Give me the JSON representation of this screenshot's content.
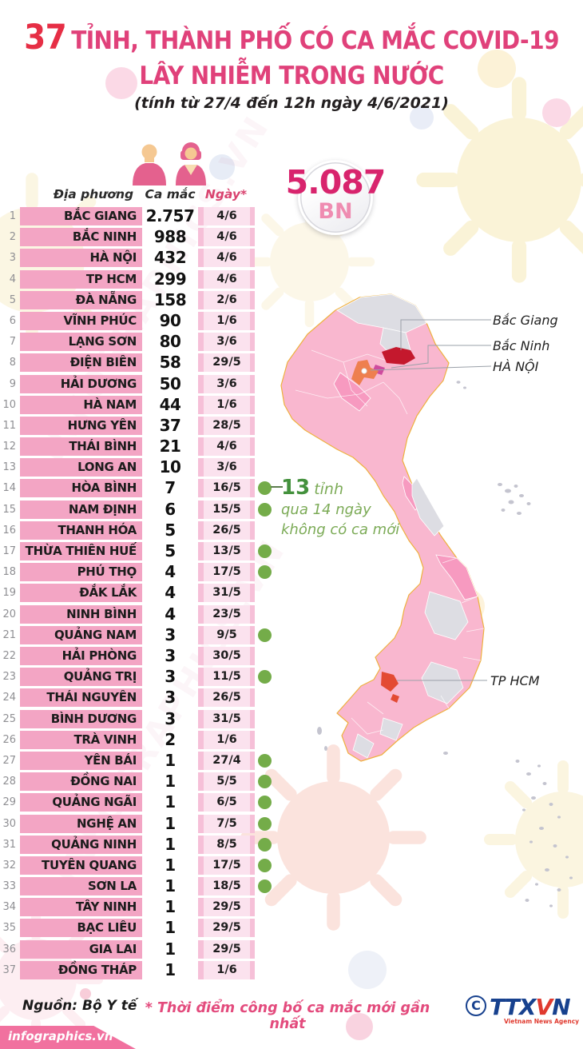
{
  "title": {
    "number": "37",
    "rest": "TỈNH, THÀNH PHỐ CÓ CA MẮC COVID-19",
    "line2": "LÂY NHIỄM TRONG NƯỚC",
    "subtitle": "(tính từ 27/4 đến 12h ngày 4/6/2021)"
  },
  "badge": {
    "value": "5.087",
    "unit": "BN"
  },
  "table": {
    "headers": {
      "province": "Địa phương",
      "cases": "Ca mắc",
      "date": "Ngày*"
    },
    "rows": [
      {
        "rank": 1,
        "province": "BẮC GIANG",
        "cases": "2.757",
        "date": "4/6",
        "no_new_cases_14d": false
      },
      {
        "rank": 2,
        "province": "BẮC NINH",
        "cases": "988",
        "date": "4/6",
        "no_new_cases_14d": false
      },
      {
        "rank": 3,
        "province": "HÀ NỘI",
        "cases": "432",
        "date": "4/6",
        "no_new_cases_14d": false
      },
      {
        "rank": 4,
        "province": "TP HCM",
        "cases": "299",
        "date": "4/6",
        "no_new_cases_14d": false
      },
      {
        "rank": 5,
        "province": "ĐÀ NẴNG",
        "cases": "158",
        "date": "2/6",
        "no_new_cases_14d": false
      },
      {
        "rank": 6,
        "province": "VĨNH PHÚC",
        "cases": "90",
        "date": "1/6",
        "no_new_cases_14d": false
      },
      {
        "rank": 7,
        "province": "LẠNG SƠN",
        "cases": "80",
        "date": "3/6",
        "no_new_cases_14d": false
      },
      {
        "rank": 8,
        "province": "ĐIỆN BIÊN",
        "cases": "58",
        "date": "29/5",
        "no_new_cases_14d": false
      },
      {
        "rank": 9,
        "province": "HẢI DƯƠNG",
        "cases": "50",
        "date": "3/6",
        "no_new_cases_14d": false
      },
      {
        "rank": 10,
        "province": "HÀ NAM",
        "cases": "44",
        "date": "1/6",
        "no_new_cases_14d": false
      },
      {
        "rank": 11,
        "province": "HƯNG YÊN",
        "cases": "37",
        "date": "28/5",
        "no_new_cases_14d": false
      },
      {
        "rank": 12,
        "province": "THÁI BÌNH",
        "cases": "21",
        "date": "4/6",
        "no_new_cases_14d": false
      },
      {
        "rank": 13,
        "province": "LONG AN",
        "cases": "10",
        "date": "3/6",
        "no_new_cases_14d": false
      },
      {
        "rank": 14,
        "province": "HÒA BÌNH",
        "cases": "7",
        "date": "16/5",
        "no_new_cases_14d": true
      },
      {
        "rank": 15,
        "province": "NAM ĐỊNH",
        "cases": "6",
        "date": "15/5",
        "no_new_cases_14d": true
      },
      {
        "rank": 16,
        "province": "THANH HÓA",
        "cases": "5",
        "date": "26/5",
        "no_new_cases_14d": false
      },
      {
        "rank": 17,
        "province": "THỪA THIÊN HUẾ",
        "cases": "5",
        "date": "13/5",
        "no_new_cases_14d": true
      },
      {
        "rank": 18,
        "province": "PHÚ THỌ",
        "cases": "4",
        "date": "17/5",
        "no_new_cases_14d": true
      },
      {
        "rank": 19,
        "province": "ĐẮK LẮK",
        "cases": "4",
        "date": "31/5",
        "no_new_cases_14d": false
      },
      {
        "rank": 20,
        "province": "NINH BÌNH",
        "cases": "4",
        "date": "23/5",
        "no_new_cases_14d": false
      },
      {
        "rank": 21,
        "province": "QUẢNG NAM",
        "cases": "3",
        "date": "9/5",
        "no_new_cases_14d": true
      },
      {
        "rank": 22,
        "province": "HẢI PHÒNG",
        "cases": "3",
        "date": "30/5",
        "no_new_cases_14d": false
      },
      {
        "rank": 23,
        "province": "QUẢNG TRỊ",
        "cases": "3",
        "date": "11/5",
        "no_new_cases_14d": true
      },
      {
        "rank": 24,
        "province": "THÁI NGUYÊN",
        "cases": "3",
        "date": "26/5",
        "no_new_cases_14d": false
      },
      {
        "rank": 25,
        "province": "BÌNH DƯƠNG",
        "cases": "3",
        "date": "31/5",
        "no_new_cases_14d": false
      },
      {
        "rank": 26,
        "province": "TRÀ VINH",
        "cases": "2",
        "date": "1/6",
        "no_new_cases_14d": false
      },
      {
        "rank": 27,
        "province": "YÊN BÁI",
        "cases": "1",
        "date": "27/4",
        "no_new_cases_14d": true
      },
      {
        "rank": 28,
        "province": "ĐỒNG NAI",
        "cases": "1",
        "date": "5/5",
        "no_new_cases_14d": true
      },
      {
        "rank": 29,
        "province": "QUẢNG NGÃI",
        "cases": "1",
        "date": "6/5",
        "no_new_cases_14d": true
      },
      {
        "rank": 30,
        "province": "NGHỆ AN",
        "cases": "1",
        "date": "7/5",
        "no_new_cases_14d": true
      },
      {
        "rank": 31,
        "province": "QUẢNG NINH",
        "cases": "1",
        "date": "8/5",
        "no_new_cases_14d": true
      },
      {
        "rank": 32,
        "province": "TUYÊN QUANG",
        "cases": "1",
        "date": "17/5",
        "no_new_cases_14d": true
      },
      {
        "rank": 33,
        "province": "SƠN LA",
        "cases": "1",
        "date": "18/5",
        "no_new_cases_14d": true
      },
      {
        "rank": 34,
        "province": "TÂY NINH",
        "cases": "1",
        "date": "29/5",
        "no_new_cases_14d": false
      },
      {
        "rank": 35,
        "province": "BẠC LIÊU",
        "cases": "1",
        "date": "29/5",
        "no_new_cases_14d": false
      },
      {
        "rank": 36,
        "province": "GIA LAI",
        "cases": "1",
        "date": "29/5",
        "no_new_cases_14d": false
      },
      {
        "rank": 37,
        "province": "ĐỒNG THÁP",
        "cases": "1",
        "date": "1/6",
        "no_new_cases_14d": false
      }
    ]
  },
  "annotation": {
    "number": "13",
    "word": "tỉnh",
    "line2": "qua 14 ngày",
    "line3": "không có ca mới"
  },
  "map": {
    "labels": [
      {
        "name": "Bắc Giang"
      },
      {
        "name": "Bắc Ninh"
      },
      {
        "name": "HÀ NỘI"
      },
      {
        "name": "TP HCM"
      }
    ]
  },
  "footer": {
    "source": "Nguồn: Bộ Y tế",
    "footnote": "* Thời điểm công bố ca mắc mới gần nhất",
    "brand": "infographics.vn",
    "agency": {
      "copyright": "C",
      "name_part1": "TTX",
      "name_part2": "V",
      "name_part3": "N",
      "tagline": "Vietnam News Agency"
    }
  },
  "colors": {
    "title_pink": "#e0417a",
    "title_red": "#e62e45",
    "bar_pink": "#f3a5c4",
    "date_bg": "#fbe2ee",
    "green_dot": "#74ac49",
    "badge_value": "#d8246d",
    "map_pink": "#f9b7cf",
    "map_gray": "#dddde3",
    "bac_giang_red": "#c4182d",
    "bac_ninh_magenta": "#ce4a9e",
    "ha_noi_orange": "#ee7f4f",
    "tp_hcm_red": "#e34a33"
  },
  "chart_data": {
    "type": "table",
    "title": "37 tỉnh, thành phố có ca mắc COVID-19 lây nhiễm trong nước",
    "subtitle": "(tính từ 27/4 đến 12h ngày 4/6/2021)",
    "total_patients": 5087,
    "total_unit": "BN",
    "columns": [
      "Địa phương",
      "Ca mắc",
      "Ngày*"
    ],
    "rows": [
      [
        "BẮC GIANG",
        2757,
        "4/6"
      ],
      [
        "BẮC NINH",
        988,
        "4/6"
      ],
      [
        "HÀ NỘI",
        432,
        "4/6"
      ],
      [
        "TP HCM",
        299,
        "4/6"
      ],
      [
        "ĐÀ NẴNG",
        158,
        "2/6"
      ],
      [
        "VĨNH PHÚC",
        90,
        "1/6"
      ],
      [
        "LẠNG SƠN",
        80,
        "3/6"
      ],
      [
        "ĐIỆN BIÊN",
        58,
        "29/5"
      ],
      [
        "HẢI DƯƠNG",
        50,
        "3/6"
      ],
      [
        "HÀ NAM",
        44,
        "1/6"
      ],
      [
        "HƯNG YÊN",
        37,
        "28/5"
      ],
      [
        "THÁI BÌNH",
        21,
        "4/6"
      ],
      [
        "LONG AN",
        10,
        "3/6"
      ],
      [
        "HÒA BÌNH",
        7,
        "16/5"
      ],
      [
        "NAM ĐỊNH",
        6,
        "15/5"
      ],
      [
        "THANH HÓA",
        5,
        "26/5"
      ],
      [
        "THỪA THIÊN HUẾ",
        5,
        "13/5"
      ],
      [
        "PHÚ THỌ",
        4,
        "17/5"
      ],
      [
        "ĐẮK LẮK",
        4,
        "31/5"
      ],
      [
        "NINH BÌNH",
        4,
        "23/5"
      ],
      [
        "QUẢNG NAM",
        3,
        "9/5"
      ],
      [
        "HẢI PHÒNG",
        3,
        "30/5"
      ],
      [
        "QUẢNG TRỊ",
        3,
        "11/5"
      ],
      [
        "THÁI NGUYÊN",
        3,
        "26/5"
      ],
      [
        "BÌNH DƯƠNG",
        3,
        "31/5"
      ],
      [
        "TRÀ VINH",
        2,
        "1/6"
      ],
      [
        "YÊN BÁI",
        1,
        "27/4"
      ],
      [
        "ĐỒNG NAI",
        1,
        "5/5"
      ],
      [
        "QUẢNG NGÃI",
        1,
        "6/5"
      ],
      [
        "NGHỆ AN",
        1,
        "7/5"
      ],
      [
        "QUẢNG NINH",
        1,
        "8/5"
      ],
      [
        "TUYÊN QUANG",
        1,
        "17/5"
      ],
      [
        "SƠN LA",
        1,
        "18/5"
      ],
      [
        "TÂY NINH",
        1,
        "29/5"
      ],
      [
        "BẠC LIÊU",
        1,
        "29/5"
      ],
      [
        "GIA LAI",
        1,
        "29/5"
      ],
      [
        "ĐỒNG THÁP",
        1,
        "1/6"
      ]
    ],
    "provinces_no_new_cases_14_days": [
      "HÒA BÌNH",
      "NAM ĐỊNH",
      "THỪA THIÊN HUẾ",
      "PHÚ THỌ",
      "QUẢNG NAM",
      "QUẢNG TRỊ",
      "YÊN BÁI",
      "ĐỒNG NAI",
      "QUẢNG NGÃI",
      "NGHỆ AN",
      "QUẢNG NINH",
      "TUYÊN QUANG",
      "SƠN LA"
    ]
  }
}
